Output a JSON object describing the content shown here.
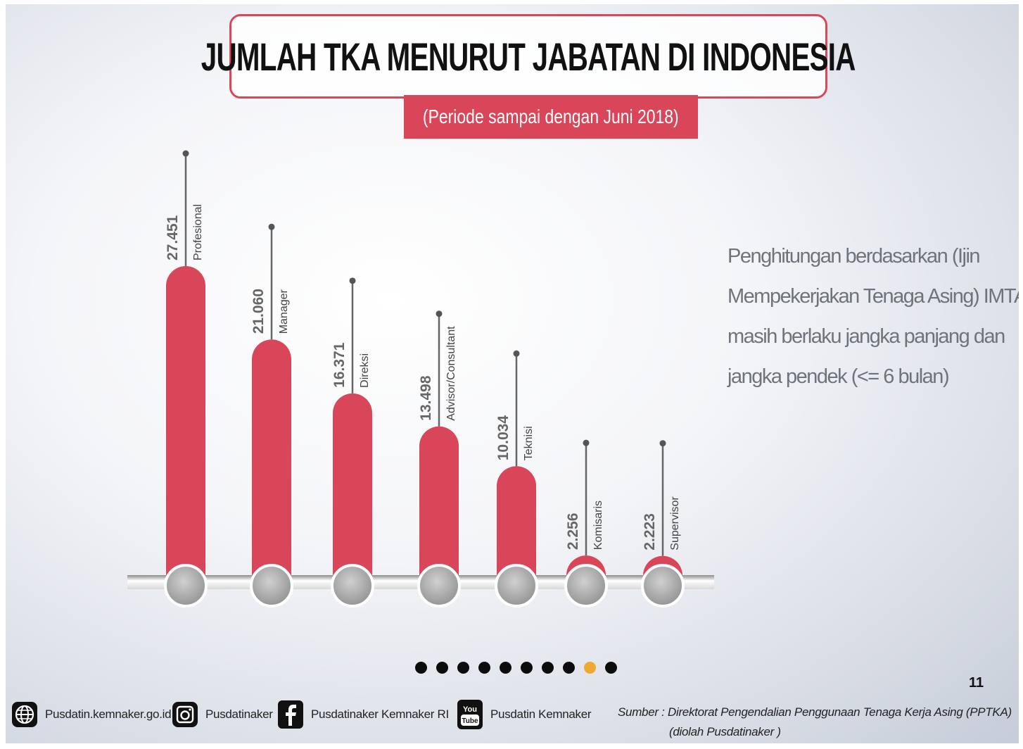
{
  "title": "JUMLAH TKA MENURUT JABATAN DI INDONESIA",
  "subtitle": "(Periode sampai dengan Juni 2018)",
  "note_lines": [
    "Penghitungan berdasarkan (Ijin",
    "Mempekerjakan Tenaga Asing) IMTA",
    "masih berlaku jangka panjang dan",
    "jangka pendek (<= 6 bulan)"
  ],
  "chart_data": {
    "type": "bar",
    "title": "JUMLAH TKA MENURUT JABATAN DI INDONESIA",
    "subtitle": "(Periode sampai dengan Juni 2018)",
    "categories": [
      "Profesional",
      "Manager",
      "Direksi",
      "Advisor/Consultant",
      "Teknisi",
      "Komisaris",
      "Supervisor"
    ],
    "values": [
      27451,
      21060,
      16371,
      13498,
      10034,
      2256,
      2223
    ],
    "value_labels": [
      "27.451",
      "21.060",
      "16.371",
      "13.498",
      "10.034",
      "2.256",
      "2.223"
    ],
    "xlabel": "",
    "ylabel": "",
    "grid": false,
    "bar_color": "#d9465a"
  },
  "pagination": {
    "count": 10,
    "active_index": 8
  },
  "page_number": "11",
  "footer": {
    "social": [
      {
        "icon": "globe-icon",
        "label": "Pusdatin.kemnaker.go.id"
      },
      {
        "icon": "instagram-icon",
        "label": "Pusdatinaker"
      },
      {
        "icon": "facebook-icon",
        "label": "Pusdatinaker  Kemnaker RI"
      },
      {
        "icon": "youtube-icon",
        "label": "Pusdatin Kemnaker"
      }
    ],
    "source_line1": "Sumber : Direktorat Pengendalian Penggunaan Tenaga Kerja Asing (PPTKA)",
    "source_line2": "(diolah Pusdatinaker )"
  }
}
